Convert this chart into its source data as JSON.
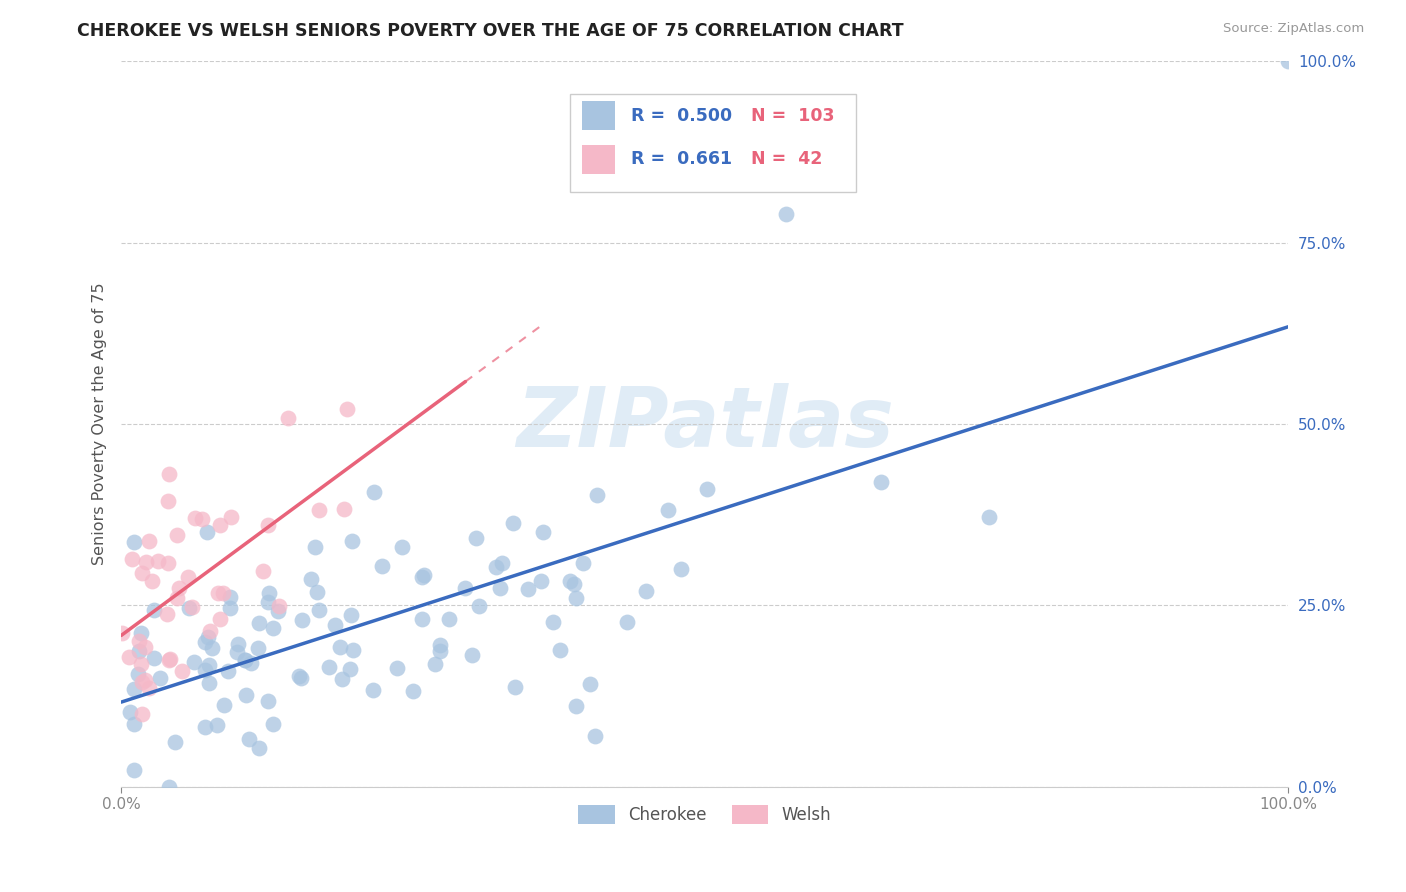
{
  "title": "CHEROKEE VS WELSH SENIORS POVERTY OVER THE AGE OF 75 CORRELATION CHART",
  "source": "Source: ZipAtlas.com",
  "ylabel": "Seniors Poverty Over the Age of 75",
  "cherokee_R": 0.5,
  "cherokee_N": 103,
  "welsh_R": 0.661,
  "welsh_N": 42,
  "cherokee_color": "#a8c4e0",
  "cherokee_line_color": "#3a6bbf",
  "welsh_color": "#f5b8c8",
  "welsh_line_color": "#e8637a",
  "legend_R_color": "#3a6bbf",
  "legend_N_color": "#e8637a",
  "background_color": "#ffffff",
  "watermark_color": "#c8ddf0",
  "grid_color": "#cccccc",
  "title_color": "#222222",
  "axis_label_color": "#555555",
  "tick_color": "#3a6bbf"
}
